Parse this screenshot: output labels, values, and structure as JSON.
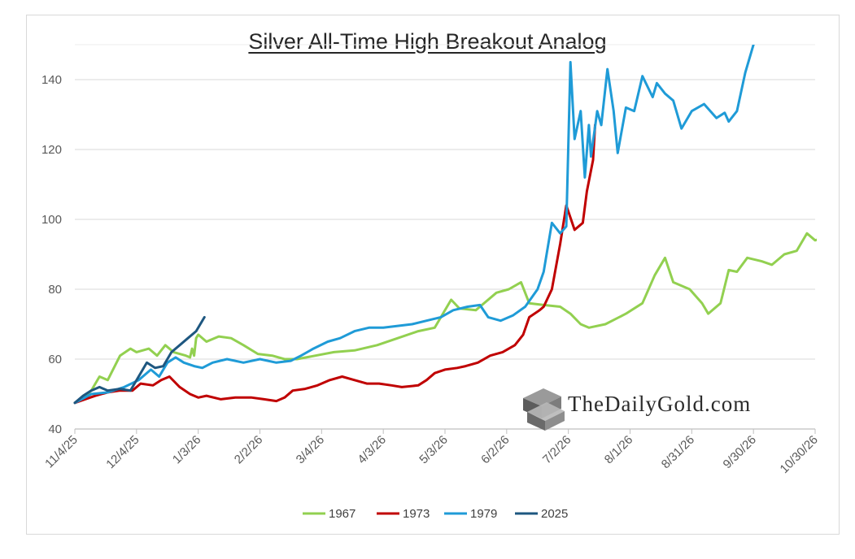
{
  "chart_data": {
    "type": "line",
    "title": "Silver All-Time High Breakout Analog",
    "xlabel": "",
    "ylabel": "",
    "ylim": [
      40,
      150
    ],
    "yticks": [
      40,
      60,
      80,
      100,
      120,
      140
    ],
    "xlim": [
      "11/4/25",
      "10/30/26"
    ],
    "xticks": [
      "11/4/25",
      "12/4/25",
      "1/3/26",
      "2/2/26",
      "3/4/26",
      "4/3/26",
      "5/3/26",
      "6/2/26",
      "7/2/26",
      "8/1/26",
      "8/31/26",
      "9/30/26",
      "10/30/26"
    ],
    "grid": "horizontal",
    "legend_position": "bottom",
    "watermark": "TheDailyGold.com",
    "series": [
      {
        "name": "1967",
        "color": "#92d050",
        "points": [
          [
            "11/4/25",
            47.5
          ],
          [
            "11/8/25",
            49
          ],
          [
            "11/12/25",
            51
          ],
          [
            "11/16/25",
            55
          ],
          [
            "11/20/25",
            54
          ],
          [
            "11/26/25",
            61
          ],
          [
            "12/1/25",
            63
          ],
          [
            "12/4/25",
            62
          ],
          [
            "12/10/25",
            63
          ],
          [
            "12/14/25",
            61
          ],
          [
            "12/18/25",
            64
          ],
          [
            "12/22/25",
            62
          ],
          [
            "12/28/25",
            61
          ],
          [
            "12/30/25",
            60.5
          ],
          [
            "12/31/25",
            63
          ],
          [
            "1/1/26",
            61
          ],
          [
            "1/2/26",
            66
          ],
          [
            "1/3/26",
            67
          ],
          [
            "1/7/26",
            65
          ],
          [
            "1/13/26",
            66.5
          ],
          [
            "1/19/26",
            66
          ],
          [
            "1/25/26",
            64
          ],
          [
            "2/1/26",
            61.5
          ],
          [
            "2/8/26",
            61
          ],
          [
            "2/14/26",
            60
          ],
          [
            "2/20/26",
            60
          ],
          [
            "3/1/26",
            61
          ],
          [
            "3/10/26",
            62
          ],
          [
            "3/20/26",
            62.5
          ],
          [
            "3/31/26",
            64
          ],
          [
            "4/10/26",
            66
          ],
          [
            "4/20/26",
            68
          ],
          [
            "4/28/26",
            69
          ],
          [
            "5/3/26",
            74
          ],
          [
            "5/6/26",
            77
          ],
          [
            "5/10/26",
            74.5
          ],
          [
            "5/18/26",
            74
          ],
          [
            "5/28/26",
            79
          ],
          [
            "6/3/26",
            80
          ],
          [
            "6/9/26",
            82
          ],
          [
            "6/13/26",
            76
          ],
          [
            "6/20/26",
            75.5
          ],
          [
            "6/28/26",
            75
          ],
          [
            "7/3/26",
            73
          ],
          [
            "7/8/26",
            70
          ],
          [
            "7/12/26",
            69
          ],
          [
            "7/20/26",
            70
          ],
          [
            "7/30/26",
            73
          ],
          [
            "8/7/26",
            76
          ],
          [
            "8/13/26",
            84
          ],
          [
            "8/18/26",
            89
          ],
          [
            "8/22/26",
            82
          ],
          [
            "8/30/26",
            80
          ],
          [
            "9/5/26",
            76
          ],
          [
            "9/8/26",
            73
          ],
          [
            "9/14/26",
            76
          ],
          [
            "9/18/26",
            85.5
          ],
          [
            "9/22/26",
            85
          ],
          [
            "9/27/26",
            89
          ],
          [
            "10/4/26",
            88
          ],
          [
            "10/9/26",
            87
          ],
          [
            "10/15/26",
            90
          ],
          [
            "10/21/26",
            91
          ],
          [
            "10/26/26",
            96
          ],
          [
            "10/30/26",
            94
          ],
          [
            "11/2/26",
            94.5
          ]
        ]
      },
      {
        "name": "1973",
        "color": "#c00000",
        "points": [
          [
            "11/4/25",
            47.5
          ],
          [
            "11/9/25",
            48.5
          ],
          [
            "11/14/25",
            49.5
          ],
          [
            "11/20/25",
            50.5
          ],
          [
            "11/26/25",
            51
          ],
          [
            "12/2/25",
            51
          ],
          [
            "12/6/25",
            53
          ],
          [
            "12/12/25",
            52.5
          ],
          [
            "12/16/25",
            54
          ],
          [
            "12/20/25",
            55
          ],
          [
            "12/25/25",
            52
          ],
          [
            "12/30/25",
            50
          ],
          [
            "1/3/26",
            49
          ],
          [
            "1/7/26",
            49.5
          ],
          [
            "1/14/26",
            48.5
          ],
          [
            "1/21/26",
            49
          ],
          [
            "1/29/26",
            49
          ],
          [
            "2/4/26",
            48.5
          ],
          [
            "2/10/26",
            48
          ],
          [
            "2/14/26",
            49
          ],
          [
            "2/18/26",
            51
          ],
          [
            "2/24/26",
            51.5
          ],
          [
            "3/2/26",
            52.5
          ],
          [
            "3/8/26",
            54
          ],
          [
            "3/14/26",
            55
          ],
          [
            "3/20/26",
            54
          ],
          [
            "3/26/26",
            53
          ],
          [
            "4/1/26",
            53
          ],
          [
            "4/7/26",
            52.5
          ],
          [
            "4/12/26",
            52
          ],
          [
            "4/20/26",
            52.5
          ],
          [
            "4/24/26",
            54
          ],
          [
            "4/28/26",
            56
          ],
          [
            "5/3/26",
            57
          ],
          [
            "5/9/26",
            57.5
          ],
          [
            "5/13/26",
            58
          ],
          [
            "5/19/26",
            59
          ],
          [
            "5/25/26",
            61
          ],
          [
            "5/31/26",
            62
          ],
          [
            "6/6/26",
            64
          ],
          [
            "6/10/26",
            67
          ],
          [
            "6/13/26",
            72
          ],
          [
            "6/18/26",
            74
          ],
          [
            "6/20/26",
            75
          ],
          [
            "6/24/26",
            80
          ],
          [
            "6/28/26",
            93
          ],
          [
            "7/1/26",
            104
          ],
          [
            "7/5/26",
            97
          ],
          [
            "7/9/26",
            99
          ],
          [
            "7/11/26",
            108
          ],
          [
            "7/14/26",
            117
          ],
          [
            "7/15/26",
            127
          ]
        ]
      },
      {
        "name": "1979",
        "color": "#1f9bd7",
        "points": [
          [
            "11/4/25",
            47.5
          ],
          [
            "11/12/25",
            50
          ],
          [
            "11/20/25",
            50.5
          ],
          [
            "11/28/25",
            52
          ],
          [
            "12/5/25",
            54
          ],
          [
            "12/11/25",
            57
          ],
          [
            "12/15/25",
            55
          ],
          [
            "12/19/25",
            59
          ],
          [
            "12/23/25",
            60.5
          ],
          [
            "12/27/25",
            59
          ],
          [
            "1/1/26",
            58
          ],
          [
            "1/5/26",
            57.5
          ],
          [
            "1/10/26",
            59
          ],
          [
            "1/17/26",
            60
          ],
          [
            "1/25/26",
            59
          ],
          [
            "2/2/26",
            60
          ],
          [
            "2/10/26",
            59
          ],
          [
            "2/17/26",
            59.5
          ],
          [
            "2/22/26",
            61
          ],
          [
            "2/28/26",
            63
          ],
          [
            "3/7/26",
            65
          ],
          [
            "3/13/26",
            66
          ],
          [
            "3/20/26",
            68
          ],
          [
            "3/27/26",
            69
          ],
          [
            "4/3/26",
            69
          ],
          [
            "4/10/26",
            69.5
          ],
          [
            "4/17/26",
            70
          ],
          [
            "4/24/26",
            71
          ],
          [
            "5/1/26",
            72
          ],
          [
            "5/7/26",
            74
          ],
          [
            "5/14/26",
            75
          ],
          [
            "5/20/26",
            75.5
          ],
          [
            "5/24/26",
            72
          ],
          [
            "5/30/26",
            71
          ],
          [
            "6/5/26",
            72.5
          ],
          [
            "6/11/26",
            75
          ],
          [
            "6/17/26",
            80
          ],
          [
            "6/20/26",
            85
          ],
          [
            "6/24/26",
            99
          ],
          [
            "6/28/26",
            96
          ],
          [
            "7/1/26",
            98
          ],
          [
            "7/3/26",
            145
          ],
          [
            "7/5/26",
            123
          ],
          [
            "7/8/26",
            131
          ],
          [
            "7/10/26",
            112
          ],
          [
            "7/12/26",
            127
          ],
          [
            "7/13/26",
            118
          ],
          [
            "7/16/26",
            131
          ],
          [
            "7/18/26",
            127
          ],
          [
            "7/21/26",
            143
          ],
          [
            "7/24/26",
            131
          ],
          [
            "7/26/26",
            119
          ],
          [
            "7/30/26",
            132
          ],
          [
            "8/3/26",
            131
          ],
          [
            "8/7/26",
            141
          ],
          [
            "8/12/26",
            135
          ],
          [
            "8/14/26",
            139
          ],
          [
            "8/18/26",
            136
          ],
          [
            "8/22/26",
            134
          ],
          [
            "8/26/26",
            126
          ],
          [
            "8/31/26",
            131
          ],
          [
            "9/6/26",
            133
          ],
          [
            "9/12/26",
            129
          ],
          [
            "9/16/26",
            130.5
          ],
          [
            "9/18/26",
            128
          ],
          [
            "9/22/26",
            131
          ],
          [
            "9/26/26",
            142
          ],
          [
            "9/30/26",
            150
          ]
        ]
      },
      {
        "name": "2025",
        "color": "#1e5780",
        "points": [
          [
            "11/4/25",
            47.5
          ],
          [
            "11/8/25",
            49.5
          ],
          [
            "11/12/25",
            51
          ],
          [
            "11/16/25",
            52
          ],
          [
            "11/20/25",
            51
          ],
          [
            "11/26/25",
            51.5
          ],
          [
            "12/1/25",
            51
          ],
          [
            "12/5/25",
            55
          ],
          [
            "12/9/25",
            59
          ],
          [
            "12/13/25",
            57.5
          ],
          [
            "12/17/25",
            58
          ],
          [
            "12/21/25",
            62
          ],
          [
            "12/25/25",
            64
          ],
          [
            "12/29/25",
            66
          ],
          [
            "1/2/26",
            68
          ],
          [
            "1/6/26",
            72
          ]
        ]
      }
    ]
  }
}
